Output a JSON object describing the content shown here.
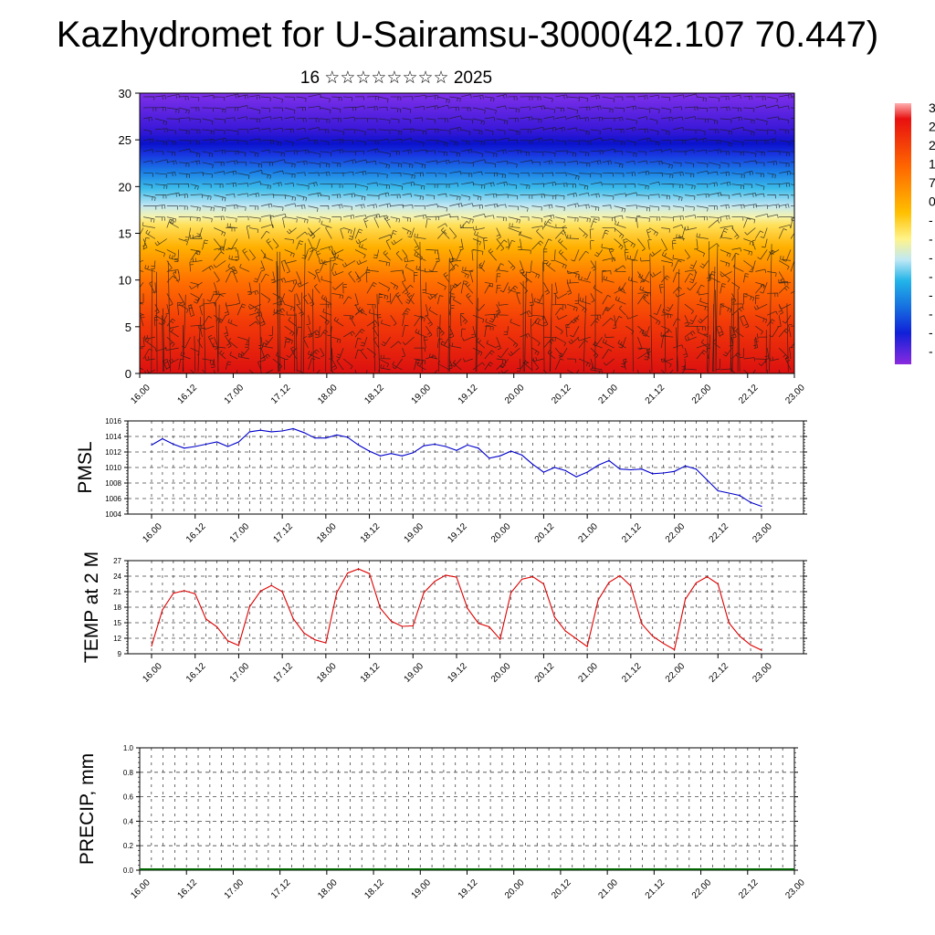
{
  "page": {
    "title": "Kazhydromet for U-Sairamsu-3000(42.107 70.447)"
  },
  "chart_data": [
    {
      "type": "heatmap",
      "title": "16 ☆☆☆☆☆☆☆☆ 2025",
      "xlabel": "",
      "ylabel": "",
      "x_tick_labels": [
        "16.00",
        "16.12",
        "17.00",
        "17.12",
        "18.00",
        "18.12",
        "19.00",
        "19.12",
        "20.00",
        "20.12",
        "21.00",
        "21.12",
        "22.00",
        "22.12",
        "23.00"
      ],
      "y_ticks": [
        0,
        5,
        10,
        15,
        20,
        25,
        30
      ],
      "ylim": [
        0,
        30
      ],
      "colorbar": {
        "labels": [
          "3",
          "2",
          "2",
          "1",
          "7",
          "0",
          "-",
          "-",
          "-",
          "-",
          "-",
          "-",
          "-",
          "-"
        ],
        "colors": [
          "#9a1020",
          "#e81010",
          "#ff6a00",
          "#ffb000",
          "#fff070",
          "#bfe8f5",
          "#22b4e8",
          "#1670e0",
          "#1020d8",
          "#5a10d0",
          "#8a2ae0"
        ]
      },
      "overlay": "wind barbs",
      "grid": false,
      "legend": "right"
    },
    {
      "type": "line",
      "ylabel": "PMSL",
      "color": "#0000cc",
      "ylim": [
        1004,
        1016
      ],
      "y_ticks": [
        1004,
        1006,
        1008,
        1010,
        1012,
        1014,
        1016
      ],
      "x_tick_labels": [
        "16.00",
        "16.12",
        "17.00",
        "17.12",
        "18.00",
        "18.12",
        "19.00",
        "19.12",
        "20.00",
        "20.12",
        "21.00",
        "21.12",
        "22.00",
        "22.12",
        "23.00"
      ],
      "grid": true,
      "values": [
        1012.9,
        1013.7,
        1013.0,
        1012.5,
        1012.7,
        1013.0,
        1013.3,
        1012.7,
        1013.3,
        1014.6,
        1014.8,
        1014.6,
        1014.7,
        1015.0,
        1014.5,
        1013.8,
        1013.8,
        1014.2,
        1013.9,
        1012.9,
        1012.1,
        1011.5,
        1011.8,
        1011.5,
        1011.9,
        1012.8,
        1013.0,
        1012.7,
        1012.2,
        1012.9,
        1012.5,
        1011.2,
        1011.5,
        1012.1,
        1011.6,
        1010.4,
        1009.4,
        1010.0,
        1009.6,
        1008.8,
        1009.4,
        1010.3,
        1010.9,
        1009.8,
        1009.7,
        1009.8,
        1009.2,
        1009.3,
        1009.5,
        1010.2,
        1009.8,
        1008.4,
        1007.0,
        1006.7,
        1006.4,
        1005.5,
        1005.0
      ]
    },
    {
      "type": "line",
      "ylabel": "TEMP at 2 M",
      "color": "#dd0000",
      "ylim": [
        9,
        27
      ],
      "y_ticks": [
        9,
        12,
        15,
        18,
        21,
        24,
        27
      ],
      "x_tick_labels": [
        "16.00",
        "16.12",
        "17.00",
        "17.12",
        "18.00",
        "18.12",
        "19.00",
        "19.12",
        "20.00",
        "20.12",
        "21.00",
        "21.12",
        "22.00",
        "22.12",
        "23.00"
      ],
      "grid": true,
      "values": [
        10.5,
        17.5,
        20.7,
        21.2,
        20.6,
        15.7,
        14.2,
        11.5,
        10.6,
        18.1,
        21.1,
        22.2,
        21.0,
        15.8,
        13.0,
        11.7,
        11.1,
        20.8,
        24.6,
        25.4,
        24.5,
        17.8,
        15.3,
        14.3,
        14.4,
        20.8,
        23.0,
        24.2,
        23.8,
        17.8,
        14.9,
        14.2,
        11.8,
        20.8,
        23.4,
        23.9,
        22.5,
        16.1,
        13.4,
        11.9,
        10.4,
        19.4,
        22.8,
        24.1,
        22.1,
        14.8,
        12.4,
        11.0,
        9.8,
        19.5,
        22.7,
        23.9,
        22.5,
        15.0,
        12.4,
        10.7,
        9.7
      ]
    },
    {
      "type": "bar",
      "ylabel": "PRECIP, mm",
      "ylim": [
        0,
        1
      ],
      "y_ticks": [
        "0.0",
        "0.2",
        "0.4",
        "0.6",
        "0.8",
        "1.0"
      ],
      "x_tick_labels": [
        "16.00",
        "16.12",
        "17.00",
        "17.12",
        "18.00",
        "18.12",
        "19.00",
        "19.12",
        "20.00",
        "20.12",
        "21.00",
        "21.12",
        "22.00",
        "22.12",
        "23.00"
      ],
      "grid": true,
      "values": []
    }
  ]
}
